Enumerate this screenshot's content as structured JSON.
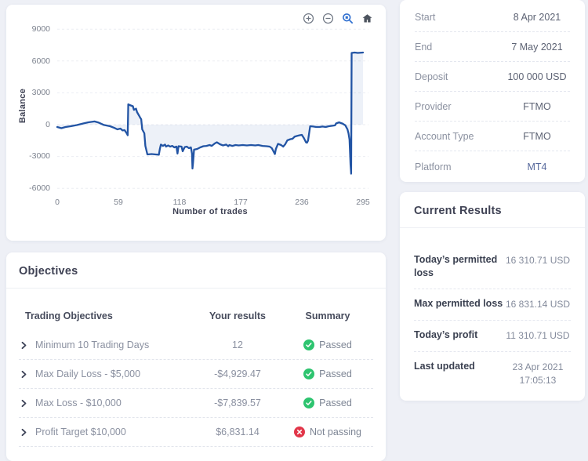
{
  "chart_panel": {
    "y_axis_label": "Balance",
    "x_axis_label": "Number of trades",
    "y_ticks": [
      "9000",
      "6000",
      "3000",
      "0",
      "-3000",
      "-6000"
    ],
    "x_ticks": [
      "0",
      "59",
      "118",
      "177",
      "236",
      "295"
    ],
    "toolbar_icons": [
      "zoom-in",
      "zoom-out",
      "selection-zoom",
      "home-reset"
    ],
    "line_color": "#2254a4",
    "active_tool_color": "#2f6fd0"
  },
  "chart_data": {
    "type": "area",
    "title": "",
    "xlabel": "Number of trades",
    "ylabel": "Balance",
    "xlim": [
      0,
      295
    ],
    "ylim": [
      -6000,
      9000
    ],
    "x_ticks": [
      0,
      59,
      118,
      177,
      236,
      295
    ],
    "y_ticks": [
      9000,
      6000,
      3000,
      0,
      -3000,
      -6000
    ],
    "grid": "horizontal-dashed",
    "legend": "none",
    "points": [
      [
        0,
        -220
      ],
      [
        4,
        -330
      ],
      [
        8,
        -220
      ],
      [
        13,
        -150
      ],
      [
        19,
        -40
      ],
      [
        25,
        110
      ],
      [
        30,
        220
      ],
      [
        36,
        300
      ],
      [
        40,
        190
      ],
      [
        45,
        -30
      ],
      [
        51,
        -150
      ],
      [
        55,
        -300
      ],
      [
        58,
        -440
      ],
      [
        61,
        -370
      ],
      [
        63,
        -550
      ],
      [
        65,
        -520
      ],
      [
        67,
        -810
      ],
      [
        68,
        -1000
      ],
      [
        68.5,
        1920
      ],
      [
        70,
        1850
      ],
      [
        73,
        1740
      ],
      [
        74,
        1400
      ],
      [
        76,
        1510
      ],
      [
        77,
        1180
      ],
      [
        79,
        850
      ],
      [
        80,
        660
      ],
      [
        81,
        520
      ],
      [
        82,
        -440
      ],
      [
        84,
        -810
      ],
      [
        85,
        -2000
      ],
      [
        87,
        -2810
      ],
      [
        91,
        -2770
      ],
      [
        95,
        -2810
      ],
      [
        98,
        -2840
      ],
      [
        99,
        -2290
      ],
      [
        100,
        -1880
      ],
      [
        102,
        -2000
      ],
      [
        104,
        -1880
      ],
      [
        105,
        -2070
      ],
      [
        107,
        -1960
      ],
      [
        109,
        -2070
      ],
      [
        111,
        -2000
      ],
      [
        113,
        -2140
      ],
      [
        115,
        -2070
      ],
      [
        116,
        -2730
      ],
      [
        117,
        -2030
      ],
      [
        120,
        -2070
      ],
      [
        121,
        -2510
      ],
      [
        123,
        -2110
      ],
      [
        125,
        -2070
      ],
      [
        127,
        -2220
      ],
      [
        129,
        -2140
      ],
      [
        130,
        -2730
      ],
      [
        130.5,
        -4140
      ],
      [
        131,
        -3620
      ],
      [
        132,
        -2360
      ],
      [
        135,
        -2290
      ],
      [
        138,
        -2140
      ],
      [
        141,
        -2030
      ],
      [
        144,
        -2000
      ],
      [
        147,
        -1920
      ],
      [
        149,
        -2000
      ],
      [
        152,
        -1770
      ],
      [
        154,
        -1660
      ],
      [
        157,
        -1850
      ],
      [
        160,
        -1960
      ],
      [
        163,
        -1880
      ],
      [
        165,
        -2030
      ],
      [
        166,
        -1920
      ],
      [
        169,
        -2000
      ],
      [
        172,
        -1920
      ],
      [
        175,
        -1960
      ],
      [
        179,
        -1920
      ],
      [
        183,
        -1960
      ],
      [
        187,
        -1920
      ],
      [
        191,
        -1960
      ],
      [
        194,
        -1920
      ],
      [
        198,
        -2000
      ],
      [
        202,
        -2030
      ],
      [
        205,
        -2070
      ],
      [
        207,
        -2220
      ],
      [
        210,
        -2770
      ],
      [
        211,
        -2290
      ],
      [
        213,
        -1810
      ],
      [
        216,
        -1920
      ],
      [
        218,
        -2070
      ],
      [
        220,
        -1850
      ],
      [
        222,
        -1480
      ],
      [
        225,
        -1370
      ],
      [
        227,
        -1330
      ],
      [
        229,
        -1140
      ],
      [
        231,
        -1070
      ],
      [
        234,
        -1000
      ],
      [
        236,
        -960
      ],
      [
        238,
        -1260
      ],
      [
        240,
        -1660
      ],
      [
        241,
        -1700
      ],
      [
        242,
        -1510
      ],
      [
        244,
        -150
      ],
      [
        247,
        -180
      ],
      [
        250,
        -220
      ],
      [
        253,
        -220
      ],
      [
        256,
        -180
      ],
      [
        259,
        -220
      ],
      [
        262,
        -150
      ],
      [
        265,
        -110
      ],
      [
        268,
        -70
      ],
      [
        269,
        110
      ],
      [
        272,
        220
      ],
      [
        273,
        180
      ],
      [
        275,
        110
      ],
      [
        278,
        -70
      ],
      [
        280,
        -440
      ],
      [
        281,
        -810
      ],
      [
        282,
        -1400
      ],
      [
        283,
        -3770
      ],
      [
        283.4,
        -4360
      ],
      [
        283.6,
        -4620
      ],
      [
        284,
        6760
      ],
      [
        287,
        6800
      ],
      [
        290,
        6760
      ],
      [
        295,
        6800
      ]
    ]
  },
  "account_info": {
    "rows": [
      {
        "label": "Start",
        "value": "8 Apr 2021"
      },
      {
        "label": "End",
        "value": "7 May 2021"
      },
      {
        "label": "Deposit",
        "value": "100 000 USD"
      },
      {
        "label": "Provider",
        "value": "FTMO"
      },
      {
        "label": "Account Type",
        "value": "FTMO"
      },
      {
        "label": "Platform",
        "value": "MT4"
      }
    ]
  },
  "current_results": {
    "title": "Current Results",
    "rows": [
      {
        "label": "Today’s permitted loss",
        "value": "16 310.71 USD",
        "value2": ""
      },
      {
        "label": "Max permitted loss",
        "value": "16 831.14 USD",
        "value2": ""
      },
      {
        "label": "Today’s profit",
        "value": "11 310.71 USD",
        "value2": ""
      },
      {
        "label": "Last updated",
        "value": "23 Apr 2021",
        "value2": "17:05:13"
      }
    ]
  },
  "objectives": {
    "title": "Objectives",
    "columns": {
      "label": "Trading Objectives",
      "result": "Your results",
      "summary": "Summary"
    },
    "rows": [
      {
        "label": "Minimum 10 Trading Days",
        "result": "12",
        "status": "Passed",
        "pass": true
      },
      {
        "label": "Max Daily Loss - $5,000",
        "result": "-$4,929.47",
        "status": "Passed",
        "pass": true
      },
      {
        "label": "Max Loss - $10,000",
        "result": "-$7,839.57",
        "status": "Passed",
        "pass": true
      },
      {
        "label": "Profit Target $10,000",
        "result": "$6,831.14",
        "status": "Not passing",
        "pass": false
      }
    ]
  },
  "colors": {
    "passed_green": "#2dc46f",
    "failed_red": "#e23649",
    "line_blue": "#2254a4",
    "area_fill": "#3a63b0",
    "link_blue": "#56689c"
  }
}
